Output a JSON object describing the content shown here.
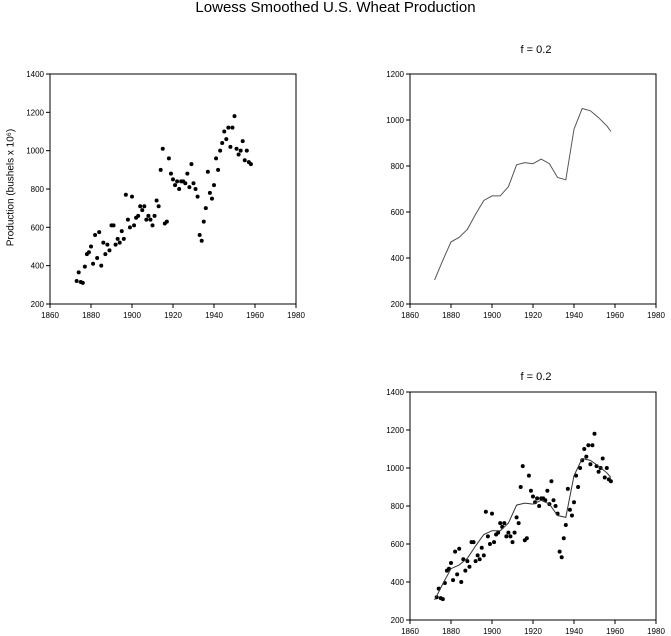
{
  "title": "Lowess Smoothed U.S. Wheat Production",
  "chart_data": [
    {
      "id": "scatter",
      "type": "scatter",
      "title": "",
      "xlabel": "",
      "ylabel": "Production (bushels x 10⁶)",
      "xlim": [
        1860,
        1980
      ],
      "ylim": [
        200,
        1400
      ],
      "xticks": [
        "1860",
        "1880",
        "1900",
        "1920",
        "1940",
        "1960",
        "1980"
      ],
      "yticks": [
        "200",
        "400",
        "600",
        "800",
        "1000",
        "1200",
        "1400"
      ],
      "grid": false,
      "series": [
        {
          "x": [
            1873,
            1874,
            1875,
            1876,
            1877,
            1878,
            1879,
            1880,
            1881,
            1882,
            1883,
            1884,
            1885,
            1886,
            1887,
            1888,
            1889,
            1890,
            1891,
            1892,
            1893,
            1894,
            1895,
            1896,
            1897,
            1898,
            1899,
            1900,
            1901,
            1902,
            1903,
            1904,
            1905,
            1906,
            1907,
            1908,
            1909,
            1910,
            1911,
            1912,
            1913,
            1914,
            1915,
            1916,
            1917,
            1918,
            1919,
            1920,
            1921,
            1922,
            1923,
            1924,
            1925,
            1926,
            1927,
            1928,
            1929,
            1930,
            1931,
            1932,
            1933,
            1934,
            1935,
            1936,
            1937,
            1938,
            1939,
            1940,
            1941,
            1942,
            1943,
            1944,
            1945,
            1946,
            1947,
            1948,
            1949,
            1950,
            1951,
            1952,
            1953,
            1954,
            1955,
            1956,
            1957,
            1958
          ],
          "y": [
            320,
            365,
            315,
            310,
            395,
            460,
            470,
            500,
            410,
            560,
            440,
            575,
            400,
            520,
            460,
            510,
            480,
            610,
            610,
            510,
            540,
            520,
            580,
            540,
            770,
            640,
            600,
            760,
            610,
            650,
            660,
            710,
            690,
            710,
            640,
            660,
            640,
            610,
            660,
            740,
            710,
            900,
            1010,
            620,
            630,
            960,
            880,
            850,
            820,
            840,
            800,
            840,
            840,
            830,
            880,
            810,
            930,
            830,
            800,
            760,
            560,
            530,
            630,
            700,
            890,
            780,
            750,
            820,
            960,
            900,
            1000,
            1040,
            1100,
            1060,
            1120,
            1020,
            1120,
            1180,
            1010,
            980,
            1000,
            1050,
            950,
            1000,
            940,
            930
          ]
        }
      ]
    },
    {
      "id": "lowess",
      "type": "line",
      "title": "f = 0.2",
      "xlabel": "",
      "ylabel": "",
      "xlim": [
        1860,
        1980
      ],
      "ylim": [
        200,
        1200
      ],
      "xticks": [
        "1860",
        "1880",
        "1900",
        "1920",
        "1940",
        "1960",
        "1980"
      ],
      "yticks": [
        "200",
        "400",
        "600",
        "800",
        "1000",
        "1200"
      ],
      "grid": false,
      "series": [
        {
          "x": [
            1872,
            1876,
            1880,
            1884,
            1888,
            1892,
            1896,
            1900,
            1904,
            1908,
            1912,
            1916,
            1920,
            1924,
            1928,
            1932,
            1936,
            1940,
            1944,
            1948,
            1952,
            1956,
            1958
          ],
          "y": [
            305,
            390,
            470,
            490,
            525,
            590,
            650,
            670,
            670,
            710,
            805,
            815,
            810,
            830,
            810,
            750,
            740,
            960,
            1050,
            1040,
            1010,
            975,
            950
          ]
        }
      ]
    },
    {
      "id": "overlay",
      "type": "scatter",
      "title": "f = 0.2",
      "xlabel": "",
      "ylabel": "",
      "xlim": [
        1860,
        1980
      ],
      "ylim": [
        200,
        1400
      ],
      "xticks": [
        "1860",
        "1880",
        "1900",
        "1920",
        "1940",
        "1960",
        "1980"
      ],
      "yticks": [
        "200",
        "400",
        "600",
        "800",
        "1000",
        "1200",
        "1400"
      ],
      "grid": false,
      "series": [
        {
          "type": "scatter",
          "uses": "scatter"
        },
        {
          "type": "line",
          "uses": "lowess"
        }
      ]
    }
  ]
}
